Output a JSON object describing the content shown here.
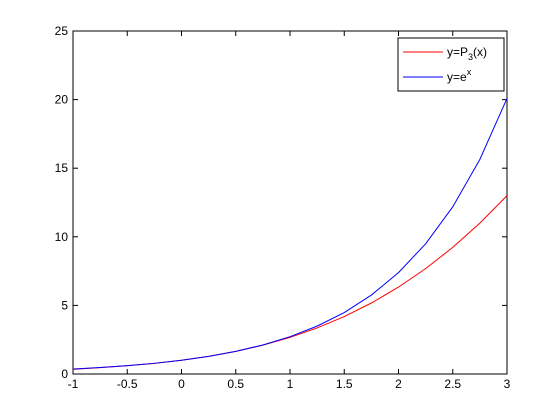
{
  "chart_data": {
    "type": "line",
    "x": [
      -1,
      -0.75,
      -0.5,
      -0.25,
      0,
      0.25,
      0.5,
      0.75,
      1,
      1.25,
      1.5,
      1.75,
      2,
      2.25,
      2.5,
      2.75,
      3
    ],
    "series": [
      {
        "name": "y=P3(x)",
        "color": "#ff0000",
        "values": [
          0.3333,
          0.4609,
          0.6042,
          0.7786,
          1,
          1.2839,
          1.6458,
          2.1016,
          2.6667,
          3.3568,
          4.1875,
          5.1745,
          6.3333,
          7.6797,
          9.2292,
          10.9974,
          13
        ]
      },
      {
        "name": "y=ex",
        "color": "#0000ff",
        "values": [
          0.3679,
          0.4724,
          0.6065,
          0.7788,
          1,
          1.284,
          1.6487,
          2.117,
          2.7183,
          3.4903,
          4.4817,
          5.7546,
          7.3891,
          9.4877,
          12.1825,
          15.6426,
          20.0855
        ]
      }
    ],
    "xlim": [
      -1,
      3
    ],
    "xticks": [
      -1,
      -0.5,
      0,
      0.5,
      1,
      1.5,
      2,
      2.5,
      3
    ],
    "ylim": [
      0,
      25
    ],
    "yticks": [
      0,
      5,
      10,
      15,
      20,
      25
    ],
    "grid": false,
    "legend": "top-right"
  }
}
